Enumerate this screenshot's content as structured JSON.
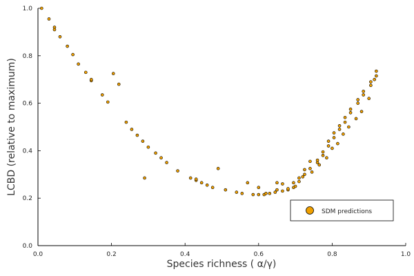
{
  "chart_data": {
    "type": "scatter",
    "xlabel": "Species richness (  α/γ)",
    "ylabel": "LCBD (relative to maximum)",
    "xlim": [
      0,
      1
    ],
    "ylim": [
      0,
      1
    ],
    "xticks": [
      "0.0",
      "0.2",
      "0.4",
      "0.6",
      "0.8",
      "1.0"
    ],
    "yticks": [
      "0.0",
      "0.2",
      "0.4",
      "0.6",
      "0.8",
      "1.0"
    ],
    "grid": false,
    "legend_position": "bottom-right",
    "marker_color": "#f0a000",
    "marker_edge_color": "#000000",
    "series": [
      {
        "name": "SDM predictions",
        "x": [
          0.01,
          0.03,
          0.045,
          0.06,
          0.08,
          0.095,
          0.11,
          0.13,
          0.145,
          0.175,
          0.19,
          0.205,
          0.22,
          0.24,
          0.255,
          0.27,
          0.285,
          0.3,
          0.32,
          0.335,
          0.35,
          0.38,
          0.415,
          0.43,
          0.445,
          0.46,
          0.475,
          0.49,
          0.51,
          0.54,
          0.555,
          0.57,
          0.585,
          0.6,
          0.6,
          0.615,
          0.63,
          0.645,
          0.65,
          0.65,
          0.665,
          0.665,
          0.68,
          0.695,
          0.695,
          0.71,
          0.71,
          0.725,
          0.725,
          0.74,
          0.74,
          0.76,
          0.76,
          0.775,
          0.775,
          0.79,
          0.79,
          0.805,
          0.805,
          0.82,
          0.82,
          0.835,
          0.835,
          0.85,
          0.85,
          0.87,
          0.87,
          0.885,
          0.885,
          0.905,
          0.905,
          0.92,
          0.92,
          0.045,
          0.145,
          0.29,
          0.43,
          0.62,
          0.68,
          0.7,
          0.72,
          0.745,
          0.765,
          0.785,
          0.8,
          0.815,
          0.83,
          0.845,
          0.865,
          0.88,
          0.9,
          0.915
        ],
        "y": [
          1.0,
          0.955,
          0.92,
          0.88,
          0.84,
          0.805,
          0.765,
          0.73,
          0.695,
          0.635,
          0.605,
          0.725,
          0.68,
          0.52,
          0.49,
          0.465,
          0.44,
          0.415,
          0.39,
          0.37,
          0.35,
          0.315,
          0.285,
          0.275,
          0.265,
          0.255,
          0.245,
          0.325,
          0.235,
          0.225,
          0.22,
          0.265,
          0.215,
          0.215,
          0.245,
          0.215,
          0.22,
          0.225,
          0.235,
          0.265,
          0.23,
          0.26,
          0.235,
          0.245,
          0.265,
          0.27,
          0.285,
          0.3,
          0.32,
          0.325,
          0.355,
          0.35,
          0.36,
          0.38,
          0.395,
          0.42,
          0.44,
          0.455,
          0.475,
          0.49,
          0.505,
          0.52,
          0.54,
          0.56,
          0.575,
          0.6,
          0.615,
          0.635,
          0.65,
          0.675,
          0.69,
          0.715,
          0.735,
          0.91,
          0.7,
          0.285,
          0.28,
          0.22,
          0.24,
          0.25,
          0.29,
          0.31,
          0.34,
          0.37,
          0.41,
          0.43,
          0.47,
          0.5,
          0.535,
          0.565,
          0.62,
          0.7
        ]
      }
    ]
  }
}
